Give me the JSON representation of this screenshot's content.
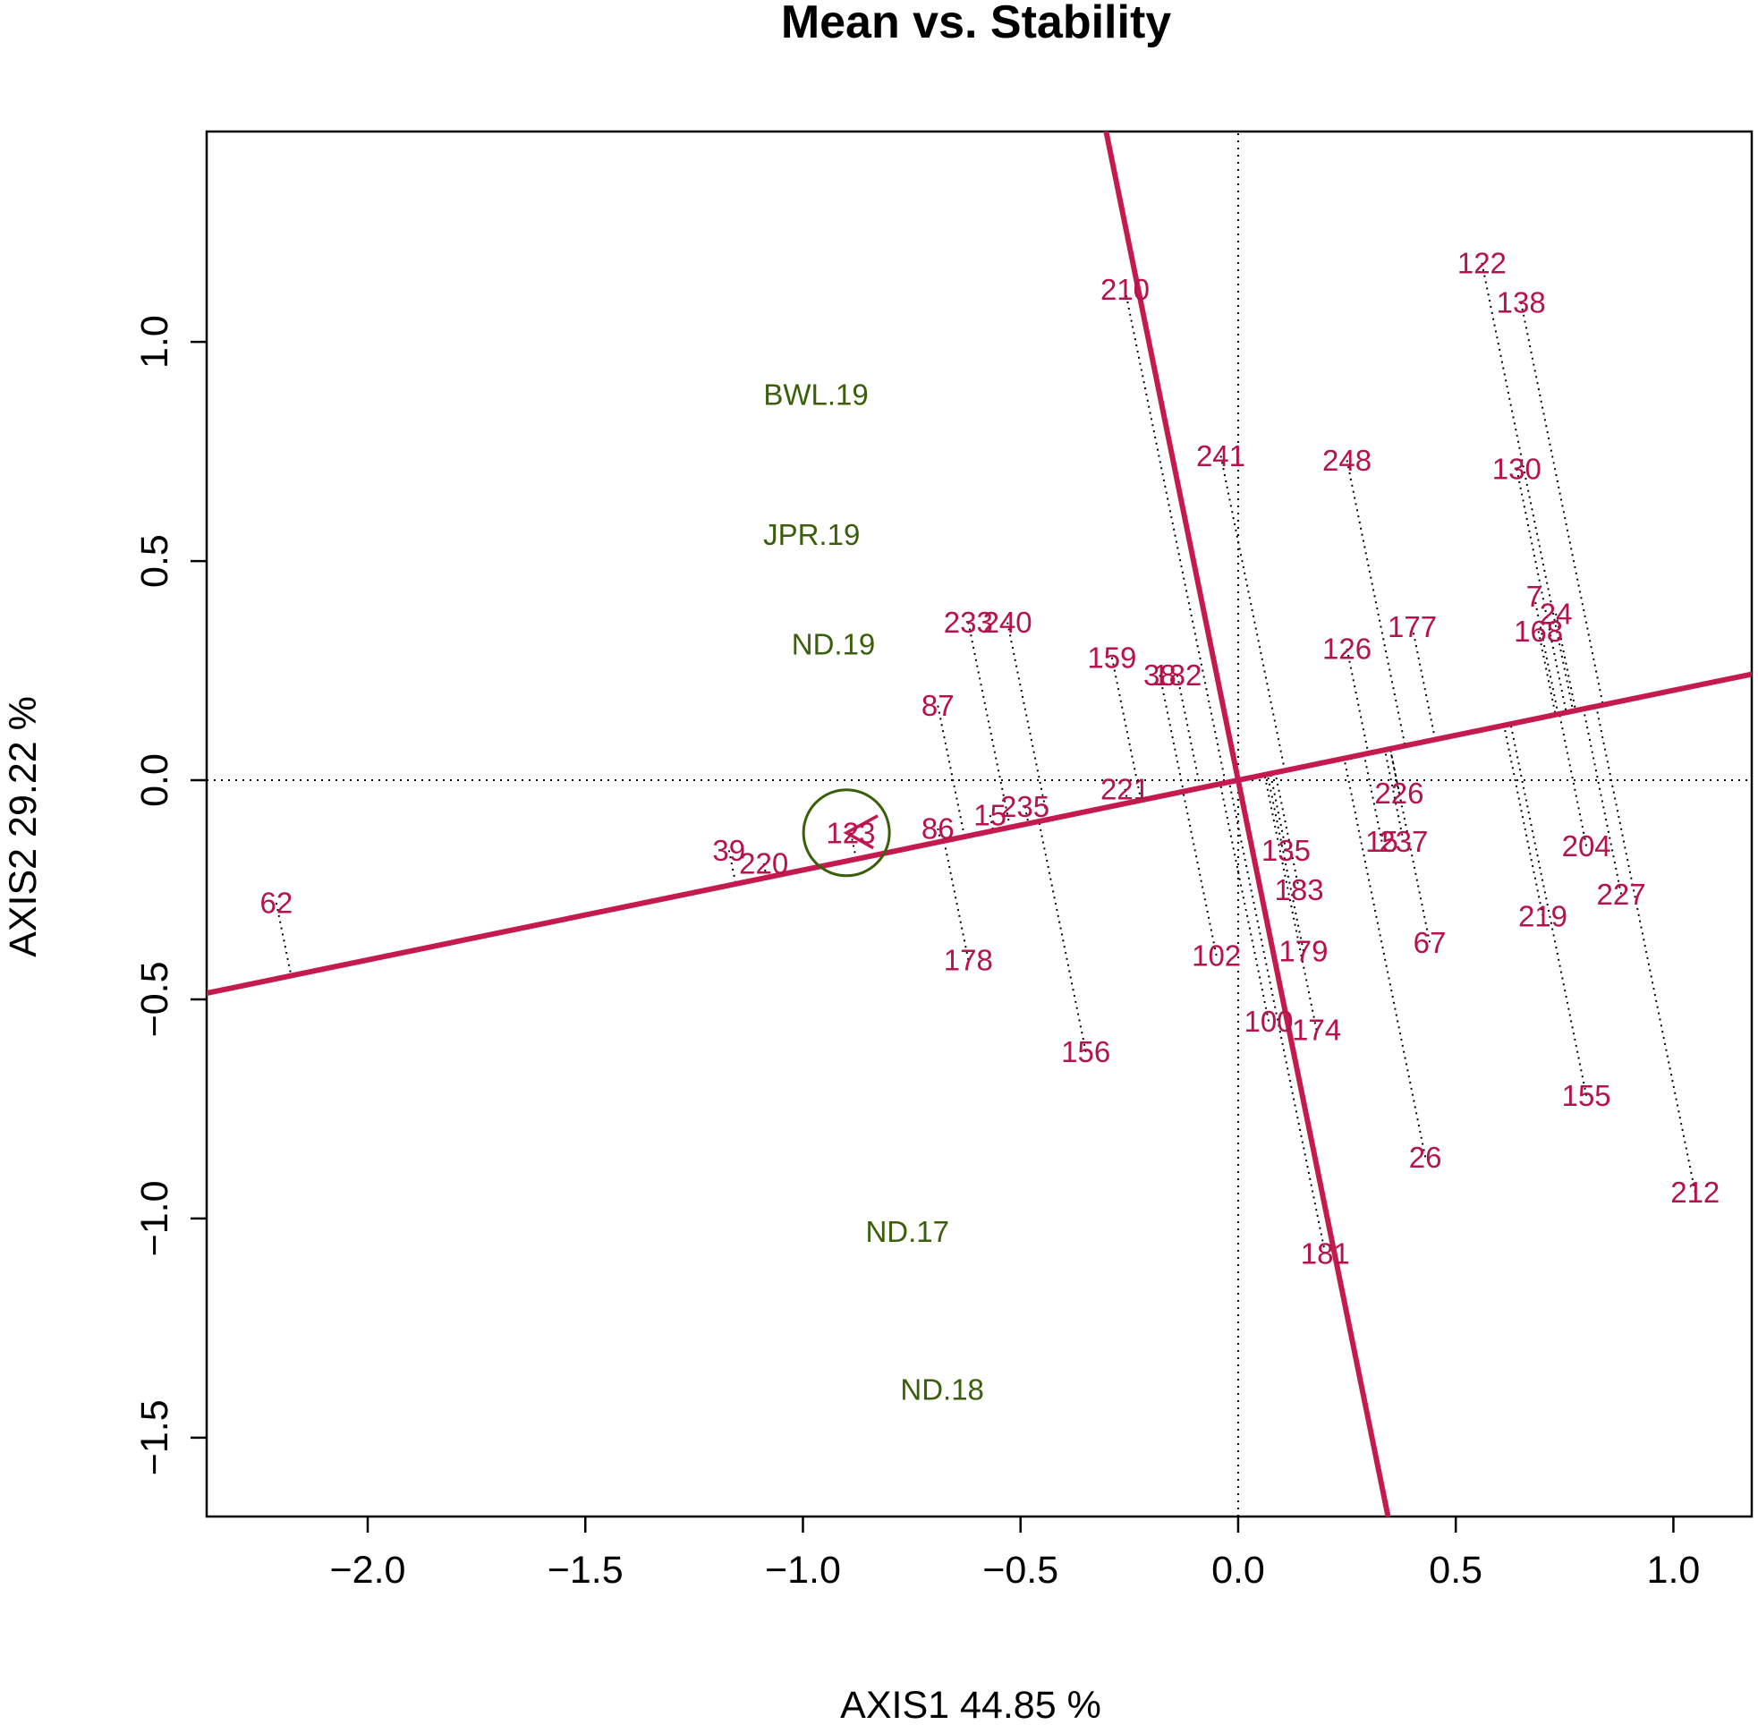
{
  "chart_data": {
    "type": "scatter",
    "title": "Mean vs. Stability",
    "xlabel": "AXIS1 44.85 %",
    "ylabel": "AXIS2 29.22 %",
    "xlim": [
      -2.37,
      1.18
    ],
    "ylim": [
      -1.68,
      1.48
    ],
    "xticks": [
      -2.0,
      -1.5,
      -1.0,
      -0.5,
      0.0,
      0.5,
      1.0
    ],
    "yticks": [
      -1.5,
      -1.0,
      -0.5,
      0.0,
      0.5,
      1.0
    ],
    "colors": {
      "genotype": "#B5134A",
      "environment": "#3A5F0B",
      "axis_line": "#C41A4E"
    },
    "aec_abscissa_slope": 0.205,
    "average_environment": {
      "x": -0.9,
      "y": -0.12
    },
    "genotypes": [
      {
        "label": "62",
        "x": -2.21,
        "y": -0.28
      },
      {
        "label": "39",
        "x": -1.17,
        "y": -0.16
      },
      {
        "label": "220",
        "x": -1.09,
        "y": -0.19
      },
      {
        "label": "123",
        "x": -0.89,
        "y": -0.12
      },
      {
        "label": "86",
        "x": -0.69,
        "y": -0.11
      },
      {
        "label": "87",
        "x": -0.69,
        "y": 0.17
      },
      {
        "label": "178",
        "x": -0.62,
        "y": -0.41
      },
      {
        "label": "233",
        "x": -0.62,
        "y": 0.36
      },
      {
        "label": "15",
        "x": -0.57,
        "y": -0.08
      },
      {
        "label": "240",
        "x": -0.53,
        "y": 0.36
      },
      {
        "label": "235",
        "x": -0.49,
        "y": -0.06
      },
      {
        "label": "156",
        "x": -0.35,
        "y": -0.62
      },
      {
        "label": "159",
        "x": -0.29,
        "y": 0.28
      },
      {
        "label": "221",
        "x": -0.26,
        "y": -0.02
      },
      {
        "label": "210",
        "x": -0.26,
        "y": 1.12
      },
      {
        "label": "38",
        "x": -0.18,
        "y": 0.24
      },
      {
        "label": "182",
        "x": -0.14,
        "y": 0.24
      },
      {
        "label": "102",
        "x": -0.05,
        "y": -0.4
      },
      {
        "label": "241",
        "x": -0.04,
        "y": 0.74
      },
      {
        "label": "100",
        "x": 0.07,
        "y": -0.55
      },
      {
        "label": "135",
        "x": 0.11,
        "y": -0.16
      },
      {
        "label": "183",
        "x": 0.14,
        "y": -0.25
      },
      {
        "label": "179",
        "x": 0.15,
        "y": -0.39
      },
      {
        "label": "174",
        "x": 0.18,
        "y": -0.57
      },
      {
        "label": "181",
        "x": 0.2,
        "y": -1.08
      },
      {
        "label": "248",
        "x": 0.25,
        "y": 0.73
      },
      {
        "label": "126",
        "x": 0.25,
        "y": 0.3
      },
      {
        "label": "15",
        "x": 0.33,
        "y": -0.14
      },
      {
        "label": "237",
        "x": 0.38,
        "y": -0.14
      },
      {
        "label": "226",
        "x": 0.37,
        "y": -0.03
      },
      {
        "label": "177",
        "x": 0.4,
        "y": 0.35
      },
      {
        "label": "26",
        "x": 0.43,
        "y": -0.86
      },
      {
        "label": "67",
        "x": 0.44,
        "y": -0.37
      },
      {
        "label": "122",
        "x": 0.56,
        "y": 1.18
      },
      {
        "label": "138",
        "x": 0.65,
        "y": 1.09
      },
      {
        "label": "130",
        "x": 0.64,
        "y": 0.71
      },
      {
        "label": "7",
        "x": 0.68,
        "y": 0.42
      },
      {
        "label": "24",
        "x": 0.73,
        "y": 0.38
      },
      {
        "label": "168",
        "x": 0.69,
        "y": 0.34
      },
      {
        "label": "219",
        "x": 0.7,
        "y": -0.31
      },
      {
        "label": "204",
        "x": 0.8,
        "y": -0.15
      },
      {
        "label": "155",
        "x": 0.8,
        "y": -0.72
      },
      {
        "label": "227",
        "x": 0.88,
        "y": -0.26
      },
      {
        "label": "212",
        "x": 1.05,
        "y": -0.94
      }
    ],
    "environments": [
      {
        "label": "BWL.19",
        "x": -0.97,
        "y": 0.88
      },
      {
        "label": "JPR.19",
        "x": -0.98,
        "y": 0.56
      },
      {
        "label": "ND.19",
        "x": -0.93,
        "y": 0.31
      },
      {
        "label": "ND.17",
        "x": -0.76,
        "y": -1.03
      },
      {
        "label": "ND.18",
        "x": -0.68,
        "y": -1.39
      }
    ]
  }
}
